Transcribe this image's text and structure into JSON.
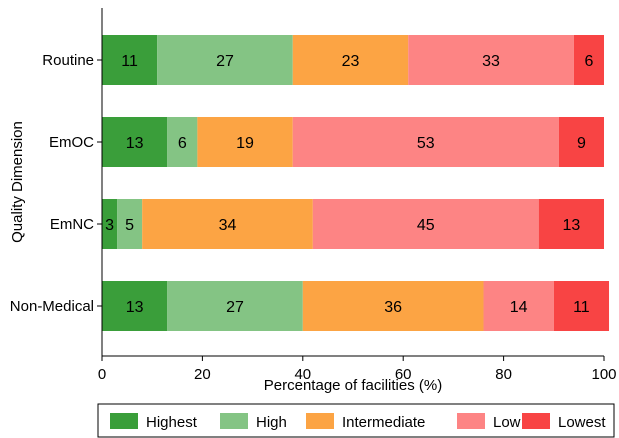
{
  "chart_data": {
    "type": "bar",
    "orientation": "horizontal",
    "stacked": true,
    "categories": [
      "Routine",
      "EmOC",
      "EmNC",
      "Non-Medical"
    ],
    "series": [
      {
        "name": "Highest",
        "values": [
          11,
          13,
          3,
          13
        ],
        "labels": [
          "11",
          "13",
          "3",
          "13"
        ],
        "color": "#3a9e3a"
      },
      {
        "name": "High",
        "values": [
          27,
          6,
          5,
          27
        ],
        "labels": [
          "27",
          "6",
          "5",
          "27"
        ],
        "color": "#84c484"
      },
      {
        "name": "Intermediate",
        "values": [
          23,
          19,
          34,
          36
        ],
        "labels": [
          "23",
          "19",
          "34",
          "36"
        ],
        "color": "#fca444"
      },
      {
        "name": "Low",
        "values": [
          33,
          53,
          45,
          14
        ],
        "labels": [
          "33",
          "53",
          "45",
          "14"
        ],
        "color": "#fd8484"
      },
      {
        "name": "Lowest",
        "values": [
          6,
          9,
          13,
          11
        ],
        "labels": [
          "6",
          "9",
          "13",
          "11"
        ],
        "color": "#f84444"
      }
    ],
    "xlabel": "Percentage of facilities (%)",
    "ylabel": "Quality Dimension",
    "xlim": [
      0,
      100
    ],
    "xticks": [
      0,
      20,
      40,
      60,
      80,
      100
    ],
    "grid": false,
    "legend_position": "bottom"
  }
}
